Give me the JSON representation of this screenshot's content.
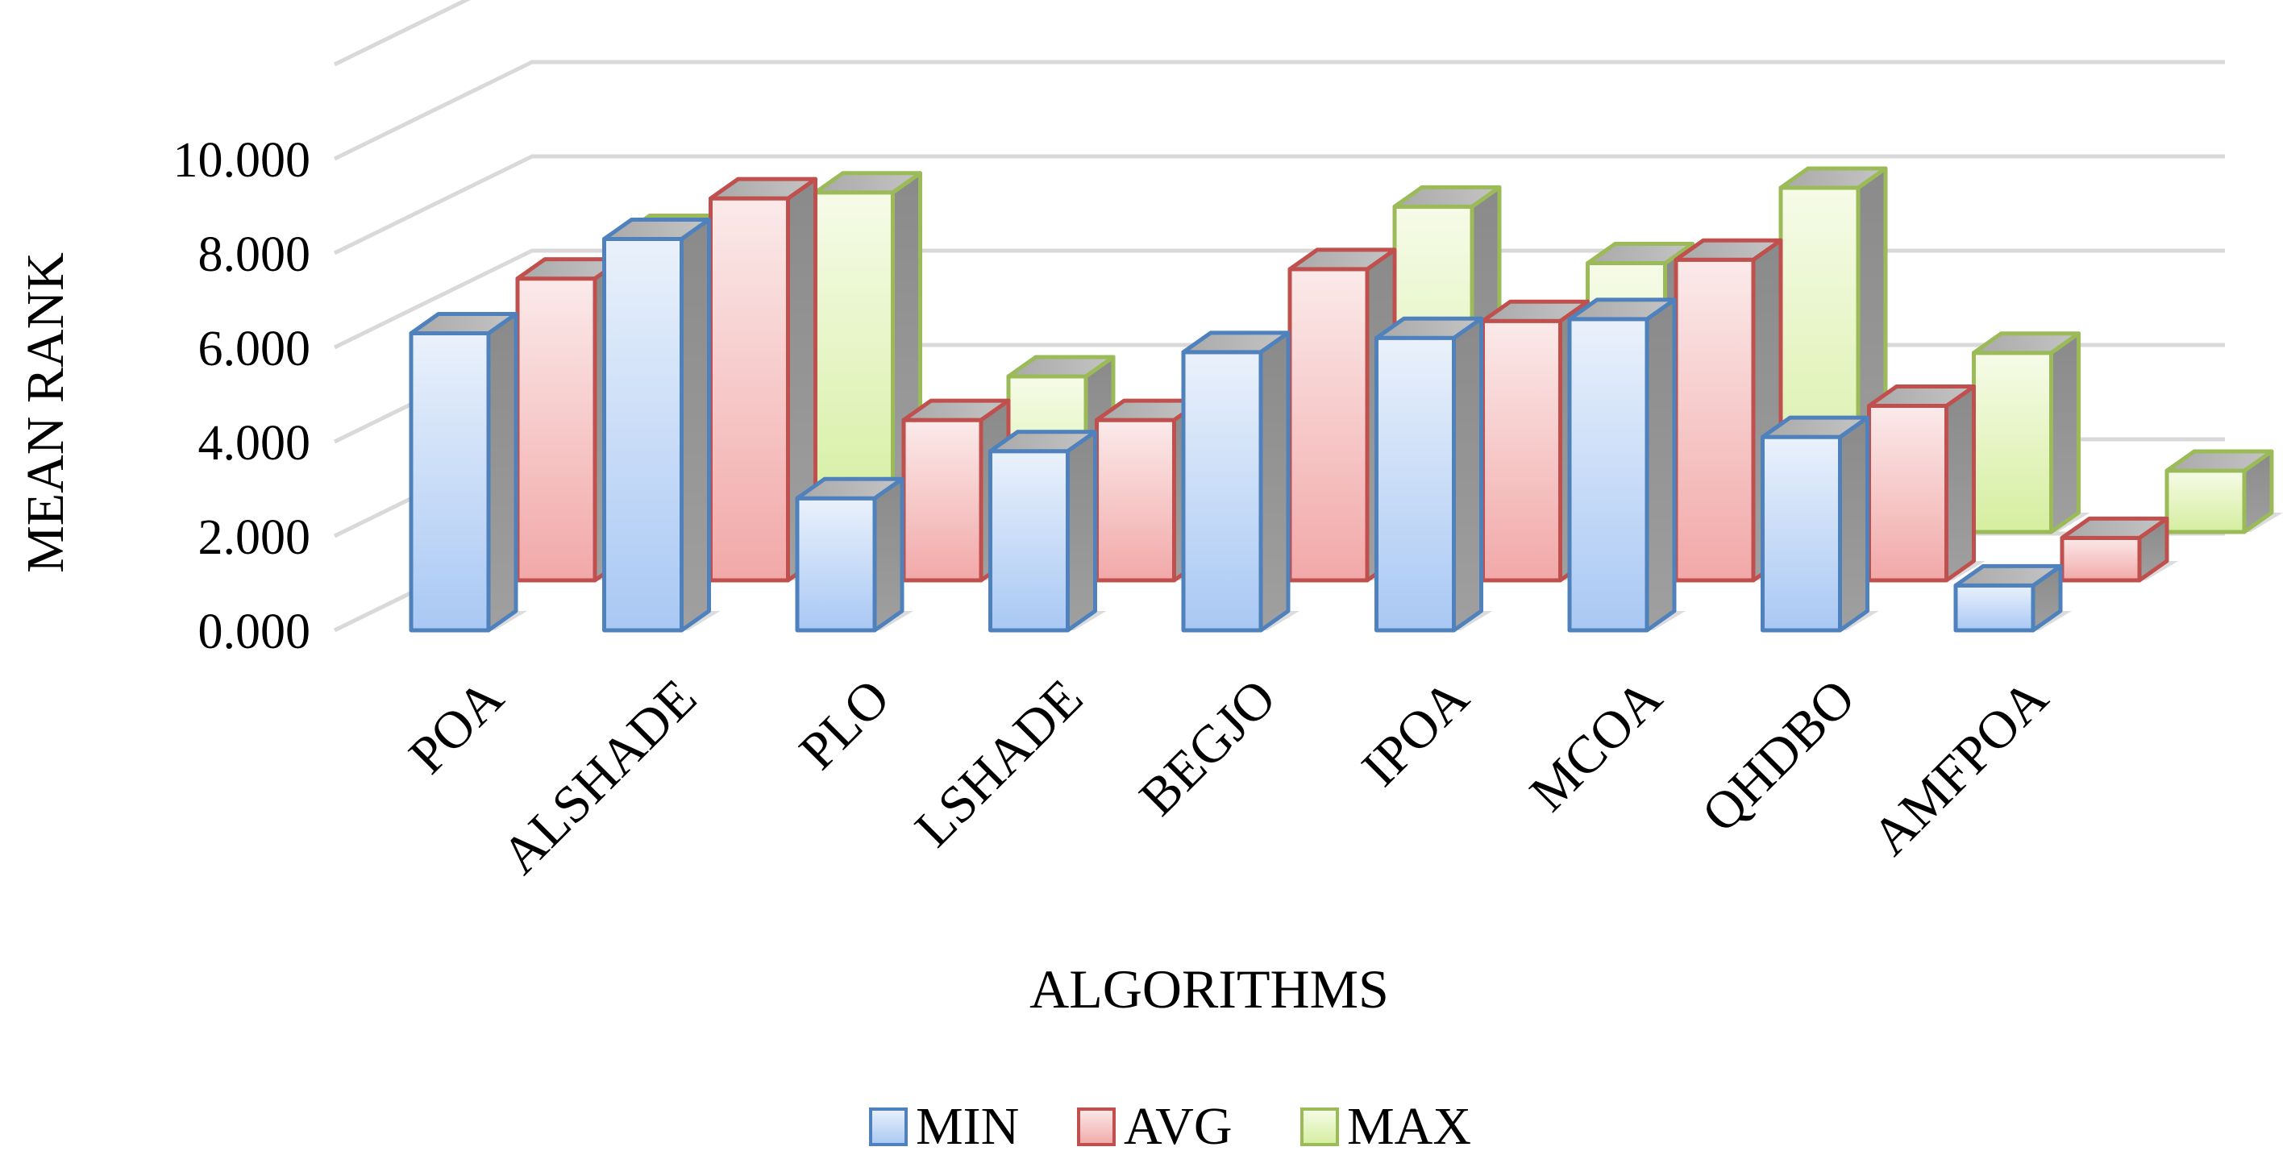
{
  "chart_data": {
    "type": "bar",
    "title": "",
    "xlabel": "ALGORITHMS",
    "ylabel": "MEAN RANK",
    "ylim": [
      0,
      10
    ],
    "yticks": [
      "0.000",
      "2.000",
      "4.000",
      "6.000",
      "8.000",
      "10.000"
    ],
    "grid": true,
    "legend_position": "bottom",
    "categories": [
      "POA",
      "ALSHADE",
      "PLO",
      "LSHADE",
      "BEGJO",
      "IPOA",
      "MCOA",
      "QHDBO",
      "AMFPOA"
    ],
    "series": [
      {
        "name": "MIN",
        "color": "#4f81bd",
        "values": [
          6.3,
          8.3,
          2.8,
          3.8,
          5.9,
          6.2,
          6.6,
          4.1,
          0.95
        ]
      },
      {
        "name": "AVG",
        "color": "#c0504d",
        "values": [
          6.4,
          8.1,
          3.4,
          3.4,
          6.6,
          5.5,
          6.8,
          3.7,
          0.9
        ]
      },
      {
        "name": "MAX",
        "color": "#9bbb59",
        "values": [
          6.3,
          7.2,
          3.3,
          3.4,
          6.9,
          5.7,
          7.3,
          3.8,
          1.3
        ]
      }
    ]
  }
}
